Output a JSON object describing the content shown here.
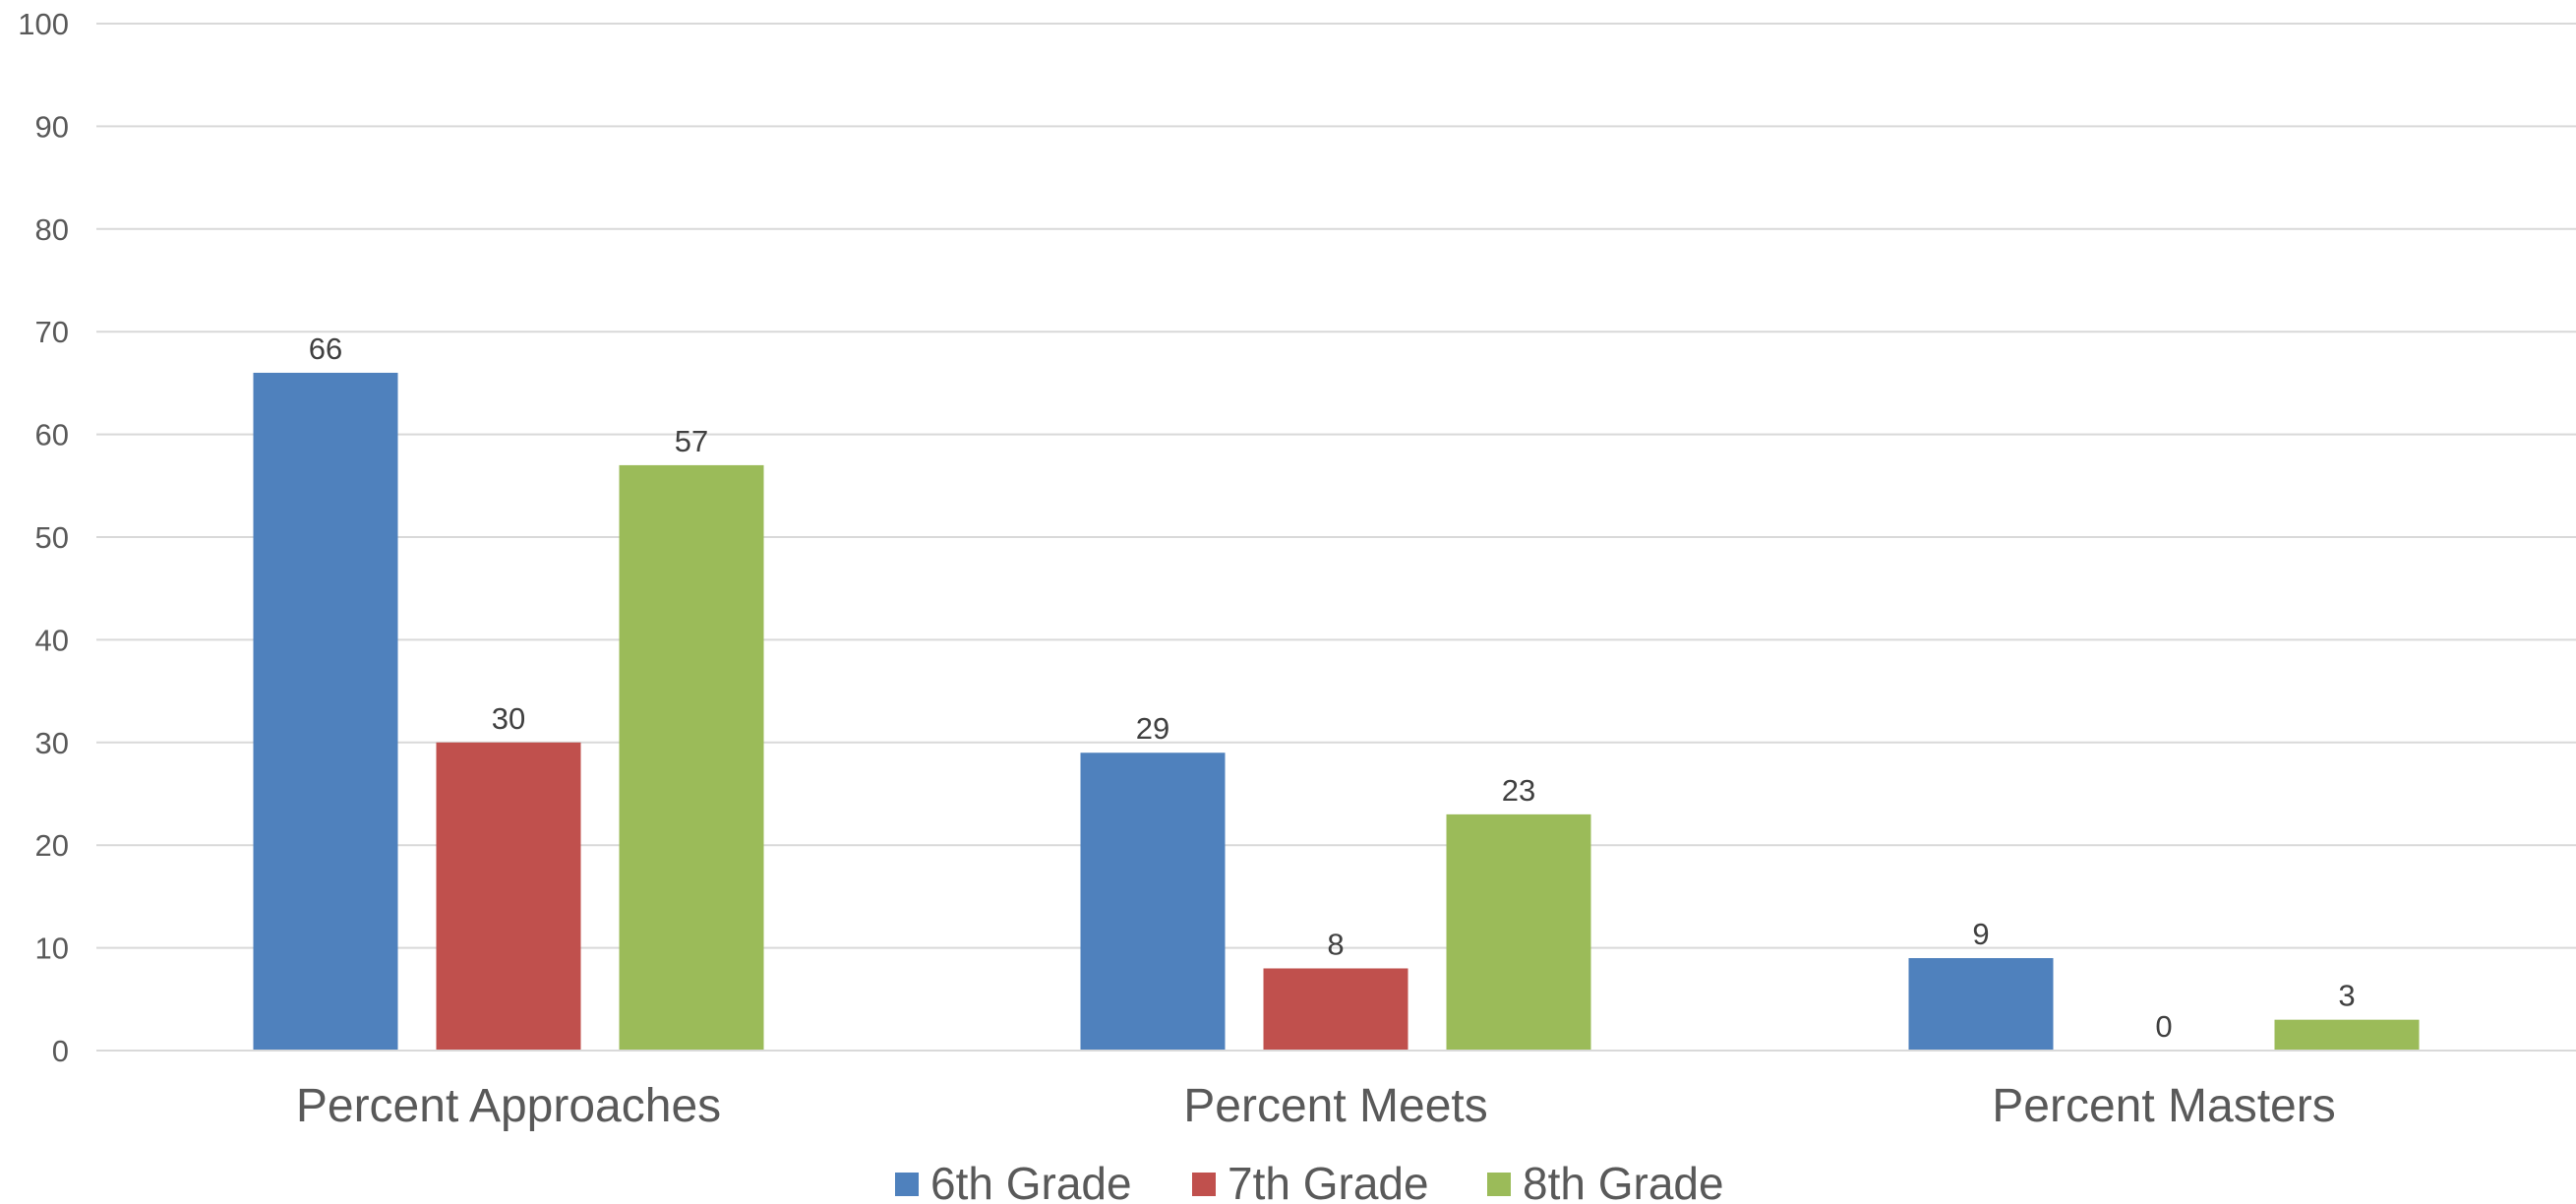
{
  "chart_data": {
    "type": "bar",
    "title": "",
    "xlabel": "",
    "ylabel": "",
    "categories": [
      "Percent Approaches",
      "Percent Meets",
      "Percent Masters"
    ],
    "series": [
      {
        "name": "6th Grade",
        "color": "#4f81bd",
        "values": [
          66,
          29,
          9
        ]
      },
      {
        "name": "7th Grade",
        "color": "#c0504d",
        "values": [
          30,
          8,
          0
        ]
      },
      {
        "name": "8th Grade",
        "color": "#9bbb59",
        "values": [
          57,
          23,
          3
        ]
      }
    ],
    "ylim": [
      0,
      100
    ],
    "yticks": [
      "0",
      "10",
      "20",
      "30",
      "40",
      "50",
      "60",
      "70",
      "80",
      "90",
      "100"
    ],
    "grid": true,
    "data_labels": true,
    "legend_position": "bottom"
  }
}
